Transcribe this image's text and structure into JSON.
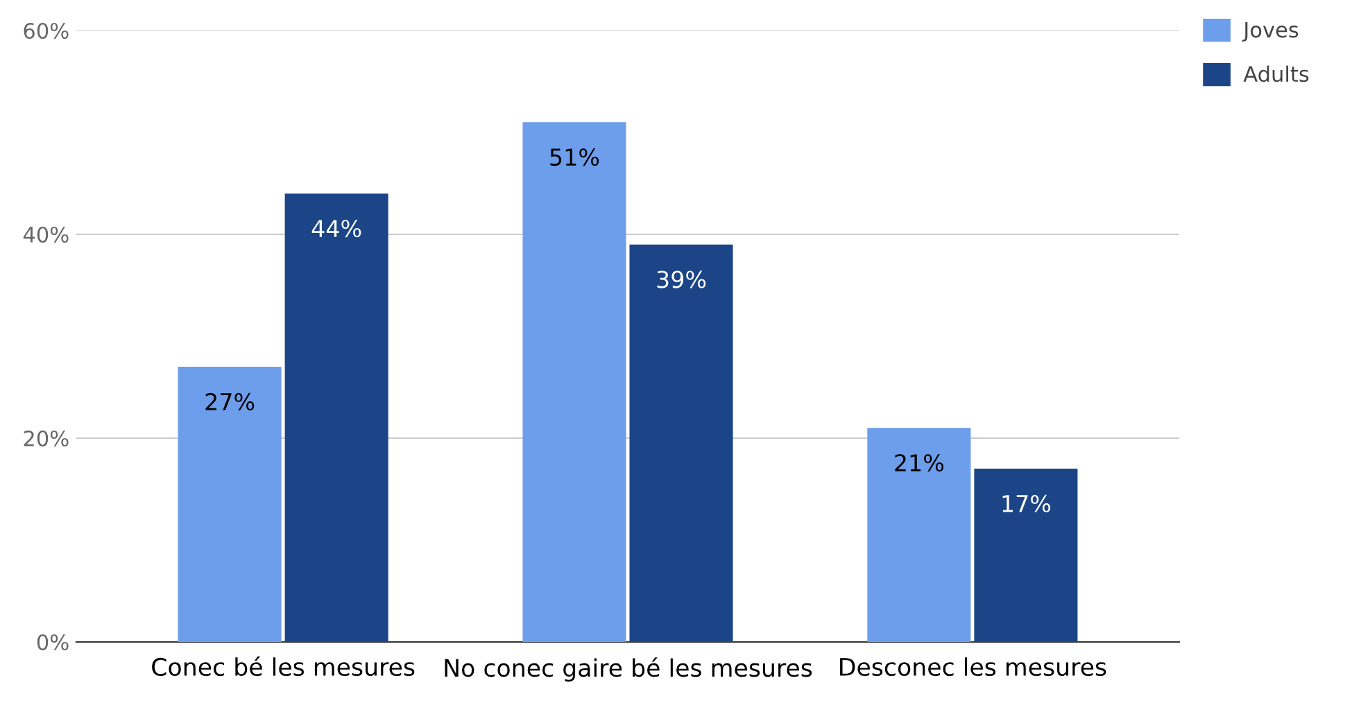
{
  "chart_data": {
    "type": "bar",
    "categories": [
      "Conec bé les mesures",
      "No conec gaire bé les mesures",
      "Desconec les mesures"
    ],
    "series": [
      {
        "name": "Joves",
        "color": "#6d9eeb",
        "values": [
          27,
          51,
          21
        ],
        "value_labels": [
          "27%",
          "51%",
          "21%"
        ]
      },
      {
        "name": "Adults",
        "color": "#1c4587",
        "values": [
          44,
          39,
          17
        ],
        "value_labels": [
          "44%",
          "39%",
          "17%"
        ]
      }
    ],
    "ylim": [
      0,
      60
    ],
    "yticks": [
      {
        "value": 0,
        "label": "0%"
      },
      {
        "value": 20,
        "label": "20%"
      },
      {
        "value": 40,
        "label": "40%"
      },
      {
        "value": 60,
        "label": "60%"
      }
    ],
    "grid": "y",
    "legend": "top right"
  }
}
